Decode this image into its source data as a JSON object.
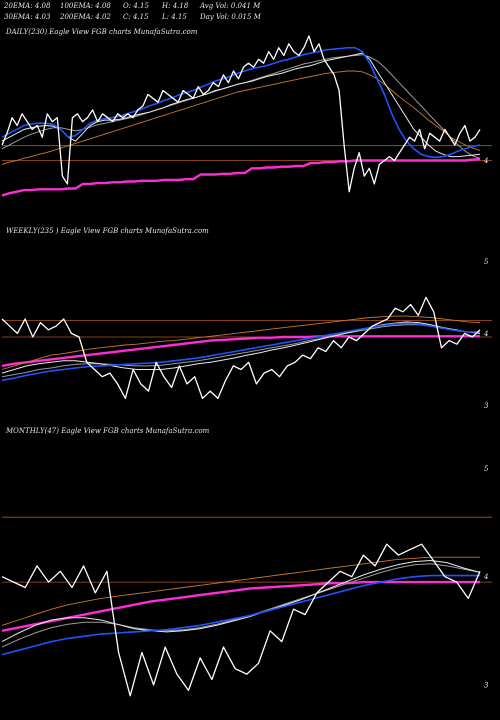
{
  "header": {
    "row1": [
      {
        "label": "20EMA: 4.08"
      },
      {
        "label": "100EMA: 4.08"
      },
      {
        "label": "O: 4.15"
      },
      {
        "label": "H: 4.18"
      },
      {
        "label": "Avg Vol: 0.041 M"
      }
    ],
    "row2": [
      {
        "label": "30EMA: 4.03"
      },
      {
        "label": "200EMA: 4.02"
      },
      {
        "label": "C: 4.15"
      },
      {
        "label": "L: 4.15"
      },
      {
        "label": "Day Vol: 0.015 M"
      }
    ]
  },
  "colors": {
    "background": "#000000",
    "price": "#ffffff",
    "ema_white": "#e8e8e8",
    "ema_gray": "#9a9a9a",
    "ema_blue": "#1f55ff",
    "ema_orange": "#c8782a",
    "ema_magenta": "#ff2bd6",
    "ref_line": "#b3541f"
  },
  "chart_data": [
    {
      "type": "line",
      "title": "DAILY(230) Eagle  View  FGB charts MunafaSutra.com",
      "ylim": [
        3.3,
        5.6
      ],
      "yticks": [
        {
          "label": "4",
          "value": 4.0
        }
      ],
      "ref_lines": [
        4.0,
        4.19
      ],
      "series": [
        {
          "role": "price",
          "color": "#ffffff",
          "values": [
            4.2,
            4.35,
            4.55,
            4.45,
            4.6,
            4.5,
            4.4,
            4.45,
            4.3,
            4.6,
            4.5,
            4.55,
            3.8,
            3.7,
            4.55,
            4.6,
            4.5,
            4.55,
            4.65,
            4.5,
            4.6,
            4.55,
            4.5,
            4.6,
            4.55,
            4.6,
            4.55,
            4.65,
            4.7,
            4.85,
            4.8,
            4.75,
            4.9,
            4.85,
            4.8,
            4.75,
            4.9,
            4.85,
            4.8,
            4.95,
            4.85,
            4.9,
            5.0,
            4.95,
            5.1,
            5.0,
            5.15,
            5.05,
            5.2,
            5.25,
            5.2,
            5.3,
            5.25,
            5.4,
            5.3,
            5.45,
            5.35,
            5.5,
            5.4,
            5.35,
            5.45,
            5.6,
            5.4,
            5.5,
            5.3,
            5.2,
            5.1,
            4.9,
            4.2,
            3.6,
            3.9,
            4.1,
            3.8,
            3.9,
            3.7,
            3.95,
            4.0,
            4.05,
            4.0,
            4.1,
            4.2,
            4.3,
            4.25,
            4.4,
            4.15,
            4.35,
            4.3,
            4.25,
            4.4,
            4.3,
            4.2,
            4.35,
            4.45,
            4.25,
            4.3,
            4.4
          ]
        },
        {
          "role": "ema_fast",
          "color": "#e8e8e8",
          "values": [
            4.25,
            4.3,
            4.35,
            4.4,
            4.42,
            4.44,
            4.45,
            4.44,
            4.4,
            4.3,
            4.25,
            4.35,
            4.45,
            4.5,
            4.52,
            4.52,
            4.53,
            4.55,
            4.58,
            4.6,
            4.62,
            4.65,
            4.68,
            4.72,
            4.75,
            4.78,
            4.8,
            4.83,
            4.86,
            4.9,
            4.92,
            4.95,
            4.98,
            5.0,
            5.02,
            5.05,
            5.08,
            5.1,
            5.12,
            5.15,
            5.18,
            5.2,
            5.22,
            5.25,
            5.28,
            5.3,
            5.32,
            5.34,
            5.36,
            5.38,
            5.3,
            5.15,
            5.0,
            4.85,
            4.7,
            4.55,
            4.4,
            4.3,
            4.2,
            4.12,
            4.08,
            4.05,
            4.05,
            4.06,
            4.07,
            4.08
          ]
        },
        {
          "role": "ema_slow",
          "color": "#9a9a9a",
          "values": [
            4.15,
            4.2,
            4.25,
            4.3,
            4.34,
            4.37,
            4.4,
            4.42,
            4.42,
            4.4,
            4.38,
            4.4,
            4.43,
            4.46,
            4.48,
            4.5,
            4.52,
            4.54,
            4.56,
            4.59,
            4.62,
            4.65,
            4.68,
            4.71,
            4.74,
            4.77,
            4.8,
            4.83,
            4.86,
            4.89,
            4.92,
            4.95,
            4.98,
            5.0,
            5.03,
            5.06,
            5.09,
            5.12,
            5.15,
            5.18,
            5.21,
            5.24,
            5.26,
            5.28,
            5.3,
            5.32,
            5.33,
            5.34,
            5.35,
            5.36,
            5.33,
            5.28,
            5.2,
            5.1,
            5.0,
            4.9,
            4.8,
            4.7,
            4.6,
            4.5,
            4.4,
            4.3,
            4.2,
            4.12,
            4.06,
            4.03
          ]
        },
        {
          "role": "ema_mid",
          "color": "#1f55ff",
          "values": [
            4.3,
            4.35,
            4.4,
            4.45,
            4.47,
            4.48,
            4.48,
            4.46,
            4.4,
            4.3,
            4.32,
            4.4,
            4.48,
            4.52,
            4.54,
            4.55,
            4.57,
            4.6,
            4.63,
            4.66,
            4.7,
            4.73,
            4.77,
            4.8,
            4.84,
            4.87,
            4.9,
            4.94,
            4.98,
            5.02,
            5.05,
            5.08,
            5.12,
            5.15,
            5.18,
            5.2,
            5.22,
            5.25,
            5.28,
            5.3,
            5.33,
            5.36,
            5.38,
            5.4,
            5.42,
            5.43,
            5.44,
            5.45,
            5.45,
            5.4,
            5.25,
            5.05,
            4.85,
            4.6,
            4.4,
            4.25,
            4.15,
            4.08,
            4.05,
            4.04,
            4.05,
            4.08,
            4.12,
            4.15,
            4.18,
            4.2
          ]
        },
        {
          "role": "ema_long",
          "color": "#c8782a",
          "values": [
            3.95,
            3.98,
            4.0,
            4.03,
            4.05,
            4.08,
            4.1,
            4.13,
            4.16,
            4.19,
            4.22,
            4.25,
            4.28,
            4.31,
            4.34,
            4.37,
            4.4,
            4.43,
            4.46,
            4.49,
            4.52,
            4.55,
            4.58,
            4.61,
            4.64,
            4.67,
            4.7,
            4.73,
            4.76,
            4.79,
            4.82,
            4.85,
            4.88,
            4.9,
            4.92,
            4.94,
            4.96,
            4.98,
            5.0,
            5.02,
            5.04,
            5.06,
            5.08,
            5.1,
            5.12,
            5.13,
            5.14,
            5.15,
            5.15,
            5.14,
            5.1,
            5.05,
            4.98,
            4.9,
            4.82,
            4.75,
            4.68,
            4.6,
            4.52,
            4.45,
            4.38,
            4.3,
            4.25,
            4.2,
            4.16,
            4.13
          ]
        },
        {
          "role": "ema_200",
          "color": "#ff2bd6",
          "values": [
            3.55,
            3.58,
            3.6,
            3.62,
            3.62,
            3.63,
            3.63,
            3.63,
            3.63,
            3.64,
            3.64,
            3.7,
            3.7,
            3.71,
            3.71,
            3.72,
            3.72,
            3.73,
            3.73,
            3.74,
            3.74,
            3.74,
            3.75,
            3.75,
            3.75,
            3.76,
            3.76,
            3.82,
            3.82,
            3.82,
            3.83,
            3.83,
            3.84,
            3.84,
            3.9,
            3.9,
            3.91,
            3.91,
            3.92,
            3.92,
            3.93,
            3.93,
            3.97,
            3.97,
            3.98,
            3.98,
            3.99,
            3.99,
            4.0,
            4.0,
            4.0,
            4.0,
            4.0,
            4.0,
            4.0,
            4.0,
            4.0,
            4.0,
            4.0,
            4.0,
            4.0,
            4.0,
            4.0,
            4.0,
            4.01,
            4.02
          ]
        }
      ]
    },
    {
      "type": "line",
      "title": "WEEKLY(235                ) Eagle  View  FGB charts MunafaSutra.com",
      "ylim": [
        2.8,
        5.35
      ],
      "yticks": [
        {
          "label": "5",
          "value": 5.0
        },
        {
          "label": "4",
          "value": 4.0
        },
        {
          "label": "3",
          "value": 3.0
        }
      ],
      "ref_lines": [
        3.95,
        4.18
      ],
      "series": [
        {
          "role": "price",
          "color": "#ffffff",
          "values": [
            4.2,
            4.1,
            4.0,
            4.2,
            3.95,
            4.15,
            4.05,
            4.1,
            4.2,
            4.0,
            3.95,
            3.6,
            3.5,
            3.4,
            3.45,
            3.3,
            3.1,
            3.5,
            3.3,
            3.2,
            3.6,
            3.4,
            3.25,
            3.55,
            3.3,
            3.4,
            3.1,
            3.2,
            3.1,
            3.35,
            3.55,
            3.5,
            3.6,
            3.3,
            3.45,
            3.5,
            3.4,
            3.55,
            3.6,
            3.7,
            3.65,
            3.8,
            3.75,
            3.9,
            3.8,
            3.95,
            3.9,
            4.0,
            4.1,
            4.15,
            4.2,
            4.35,
            4.3,
            4.4,
            4.25,
            4.5,
            4.3,
            3.8,
            3.9,
            3.85,
            4.0,
            3.95,
            4.05
          ]
        },
        {
          "role": "ema_fast",
          "color": "#e8e8e8",
          "values": [
            3.45,
            3.5,
            3.55,
            3.58,
            3.6,
            3.62,
            3.62,
            3.6,
            3.58,
            3.55,
            3.52,
            3.5,
            3.5,
            3.5,
            3.52,
            3.55,
            3.58,
            3.6,
            3.63,
            3.66,
            3.7,
            3.73,
            3.77,
            3.8,
            3.84,
            3.88,
            3.92,
            3.96,
            4.0,
            4.04,
            4.08,
            4.12,
            4.14,
            4.16,
            4.15,
            4.12,
            4.08,
            4.05,
            4.02,
            4.0
          ]
        },
        {
          "role": "ema_slow",
          "color": "#9a9a9a",
          "values": [
            3.4,
            3.43,
            3.46,
            3.5,
            3.52,
            3.55,
            3.57,
            3.58,
            3.58,
            3.57,
            3.56,
            3.55,
            3.55,
            3.56,
            3.58,
            3.6,
            3.62,
            3.65,
            3.68,
            3.71,
            3.74,
            3.77,
            3.8,
            3.83,
            3.86,
            3.9,
            3.93,
            3.97,
            4.0,
            4.03,
            4.06,
            4.09,
            4.11,
            4.12,
            4.12,
            4.1,
            4.07,
            4.04,
            4.02,
            4.01
          ]
        },
        {
          "role": "ema_mid",
          "color": "#1f55ff",
          "values": [
            3.35,
            3.38,
            3.42,
            3.45,
            3.48,
            3.5,
            3.52,
            3.54,
            3.55,
            3.56,
            3.57,
            3.58,
            3.59,
            3.6,
            3.62,
            3.64,
            3.66,
            3.69,
            3.72,
            3.75,
            3.78,
            3.81,
            3.84,
            3.87,
            3.9,
            3.93,
            3.96,
            3.99,
            4.02,
            4.05,
            4.08,
            4.11,
            4.13,
            4.14,
            4.13,
            4.1,
            4.07,
            4.04,
            4.02,
            4.02
          ]
        },
        {
          "role": "ema_long",
          "color": "#c8782a",
          "values": [
            3.5,
            3.55,
            3.6,
            3.65,
            3.7,
            3.72,
            3.75,
            3.78,
            3.8,
            3.82,
            3.84,
            3.85,
            3.87,
            3.89,
            3.9,
            3.92,
            3.94,
            3.96,
            3.98,
            4.0,
            4.02,
            4.04,
            4.06,
            4.08,
            4.1,
            4.12,
            4.14,
            4.16,
            4.18,
            4.2,
            4.22,
            4.23,
            4.24,
            4.24,
            4.23,
            4.22,
            4.2,
            4.18,
            4.16,
            4.15
          ]
        },
        {
          "role": "ema_200",
          "color": "#ff2bd6",
          "values": [
            3.55,
            3.58,
            3.6,
            3.62,
            3.64,
            3.66,
            3.68,
            3.7,
            3.72,
            3.74,
            3.76,
            3.78,
            3.8,
            3.82,
            3.84,
            3.86,
            3.88,
            3.9,
            3.91,
            3.92,
            3.93,
            3.94,
            3.94,
            3.95,
            3.95,
            3.95,
            3.96,
            3.96,
            3.96,
            3.96,
            3.96,
            3.96,
            3.96,
            3.96,
            3.96,
            3.96,
            3.96,
            3.96,
            3.96,
            3.96
          ]
        }
      ]
    },
    {
      "type": "line",
      "title": "MONTHLY(47) Eagle  View  FGB charts MunafaSutra.com",
      "ylim": [
        2.75,
        5.3
      ],
      "yticks": [
        {
          "label": "5",
          "value": 5.0
        },
        {
          "label": "4",
          "value": 4.0
        },
        {
          "label": "3",
          "value": 3.0
        }
      ],
      "ref_lines": [
        3.95,
        4.55
      ],
      "series": [
        {
          "role": "price",
          "color": "#ffffff",
          "values": [
            4.0,
            3.95,
            3.9,
            4.1,
            3.95,
            4.05,
            3.9,
            4.1,
            3.85,
            4.05,
            3.3,
            2.9,
            3.3,
            3.0,
            3.35,
            3.1,
            2.95,
            3.25,
            3.05,
            3.35,
            3.15,
            3.1,
            3.2,
            3.5,
            3.4,
            3.7,
            3.65,
            3.85,
            3.95,
            4.05,
            4.0,
            4.2,
            4.1,
            4.3,
            4.2,
            4.25,
            4.3,
            4.15,
            4.0,
            3.95,
            3.8,
            4.05
          ]
        },
        {
          "role": "ema_fast",
          "color": "#e8e8e8",
          "values": [
            3.4,
            3.48,
            3.55,
            3.6,
            3.62,
            3.62,
            3.6,
            3.56,
            3.52,
            3.5,
            3.49,
            3.5,
            3.52,
            3.55,
            3.59,
            3.63,
            3.68,
            3.73,
            3.78,
            3.84,
            3.9,
            3.96,
            4.02,
            4.07,
            4.11,
            4.14,
            4.15,
            4.13,
            4.08,
            4.04
          ]
        },
        {
          "role": "ema_slow",
          "color": "#9a9a9a",
          "values": [
            3.35,
            3.42,
            3.48,
            3.53,
            3.56,
            3.58,
            3.58,
            3.56,
            3.53,
            3.51,
            3.5,
            3.51,
            3.53,
            3.56,
            3.6,
            3.64,
            3.69,
            3.74,
            3.79,
            3.84,
            3.89,
            3.94,
            3.99,
            4.04,
            4.08,
            4.11,
            4.12,
            4.1,
            4.07,
            4.04
          ]
        },
        {
          "role": "ema_mid",
          "color": "#1f55ff",
          "values": [
            3.28,
            3.32,
            3.36,
            3.4,
            3.43,
            3.45,
            3.47,
            3.48,
            3.49,
            3.5,
            3.51,
            3.53,
            3.55,
            3.58,
            3.61,
            3.64,
            3.68,
            3.72,
            3.76,
            3.8,
            3.84,
            3.88,
            3.92,
            3.95,
            3.98,
            4.0,
            4.01,
            4.01,
            4.01,
            4.01
          ]
        },
        {
          "role": "ema_long",
          "color": "#c8782a",
          "values": [
            3.55,
            3.6,
            3.65,
            3.7,
            3.74,
            3.77,
            3.8,
            3.82,
            3.84,
            3.86,
            3.88,
            3.9,
            3.92,
            3.94,
            3.96,
            3.98,
            4.0,
            4.02,
            4.04,
            4.06,
            4.08,
            4.1,
            4.12,
            4.14,
            4.16,
            4.17,
            4.18,
            4.18,
            4.18,
            4.18
          ]
        },
        {
          "role": "ema_200",
          "color": "#ff2bd6",
          "values": [
            3.5,
            3.53,
            3.56,
            3.59,
            3.62,
            3.65,
            3.68,
            3.71,
            3.74,
            3.77,
            3.79,
            3.81,
            3.83,
            3.85,
            3.87,
            3.89,
            3.9,
            3.91,
            3.92,
            3.93,
            3.94,
            3.94,
            3.95,
            3.95,
            3.95,
            3.95,
            3.95,
            3.95,
            3.95,
            3.95
          ]
        }
      ]
    }
  ]
}
